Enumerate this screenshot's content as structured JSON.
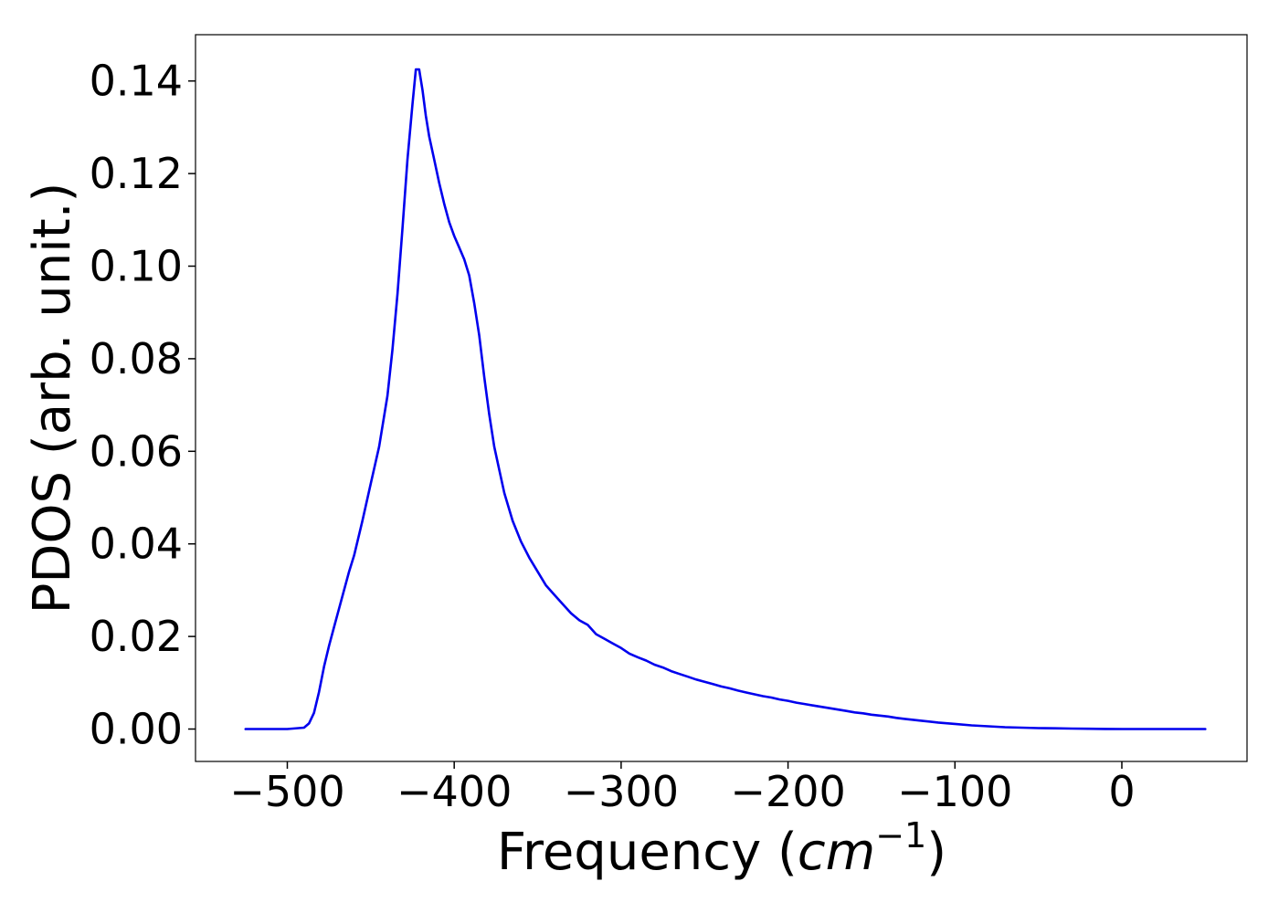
{
  "chart_data": {
    "type": "line",
    "xlabel": "Frequency",
    "xlabel_unit": {
      "base": "cm",
      "exponent": "−1"
    },
    "ylabel": "PDOS (arb. unit.)",
    "xlim": [
      -555,
      75
    ],
    "ylim": [
      -0.007,
      0.15
    ],
    "xticks": [
      -500,
      -400,
      -300,
      -200,
      -100,
      0
    ],
    "xtick_labels": [
      "−500",
      "−400",
      "−300",
      "−200",
      "−100",
      "0"
    ],
    "yticks": [
      0.0,
      0.02,
      0.04,
      0.06,
      0.08,
      0.1,
      0.12,
      0.14
    ],
    "ytick_labels": [
      "0.00",
      "0.02",
      "0.04",
      "0.06",
      "0.08",
      "0.10",
      "0.12",
      "0.14"
    ],
    "grid": false,
    "line_color": "#0000ee",
    "series": [
      {
        "x": [
          -525,
          -500,
          -490,
          -487,
          -484,
          -481,
          -478,
          -475,
          -472,
          -469,
          -466,
          -463,
          -460,
          -455,
          -450,
          -445,
          -440,
          -437,
          -434,
          -431,
          -428,
          -425,
          -423,
          -421,
          -419,
          -417,
          -415,
          -412,
          -409,
          -406,
          -403,
          -400,
          -397,
          -394,
          -391,
          -388,
          -385,
          -382,
          -379,
          -376,
          -373,
          -370,
          -365,
          -360,
          -355,
          -350,
          -345,
          -340,
          -335,
          -330,
          -325,
          -320,
          -315,
          -310,
          -305,
          -300,
          -295,
          -290,
          -285,
          -280,
          -275,
          -270,
          -265,
          -260,
          -255,
          -250,
          -245,
          -240,
          -235,
          -230,
          -225,
          -220,
          -215,
          -210,
          -205,
          -200,
          -195,
          -190,
          -185,
          -180,
          -175,
          -170,
          -165,
          -160,
          -155,
          -150,
          -145,
          -140,
          -135,
          -130,
          -125,
          -120,
          -110,
          -100,
          -90,
          -80,
          -70,
          -60,
          -50,
          -40,
          -30,
          -20,
          -10,
          0,
          10,
          20,
          30,
          40,
          50
        ],
        "y": [
          0.0,
          0.0,
          0.0003,
          0.0012,
          0.0035,
          0.008,
          0.0135,
          0.018,
          0.022,
          0.026,
          0.03,
          0.034,
          0.0375,
          0.045,
          0.053,
          0.061,
          0.072,
          0.082,
          0.094,
          0.108,
          0.123,
          0.135,
          0.1425,
          0.1425,
          0.138,
          0.1325,
          0.128,
          0.123,
          0.118,
          0.1135,
          0.1095,
          0.1065,
          0.104,
          0.1015,
          0.098,
          0.092,
          0.085,
          0.076,
          0.068,
          0.061,
          0.056,
          0.051,
          0.045,
          0.0405,
          0.037,
          0.034,
          0.031,
          0.029,
          0.027,
          0.025,
          0.0235,
          0.0225,
          0.0205,
          0.0195,
          0.0185,
          0.0175,
          0.0163,
          0.0155,
          0.0148,
          0.0139,
          0.0133,
          0.0125,
          0.0119,
          0.0113,
          0.0107,
          0.0102,
          0.0097,
          0.0092,
          0.0088,
          0.0083,
          0.0079,
          0.0075,
          0.0071,
          0.0068,
          0.0064,
          0.0061,
          0.0057,
          0.0054,
          0.0051,
          0.0048,
          0.0045,
          0.0042,
          0.0039,
          0.0036,
          0.0034,
          0.0031,
          0.0029,
          0.0027,
          0.0024,
          0.0022,
          0.002,
          0.0018,
          0.0014,
          0.0011,
          0.0008,
          0.0006,
          0.0004,
          0.0003,
          0.0002,
          0.00015,
          0.0001,
          6e-05,
          3e-05,
          0.0,
          0.0,
          0.0,
          0.0,
          0.0,
          0.0
        ]
      }
    ]
  }
}
